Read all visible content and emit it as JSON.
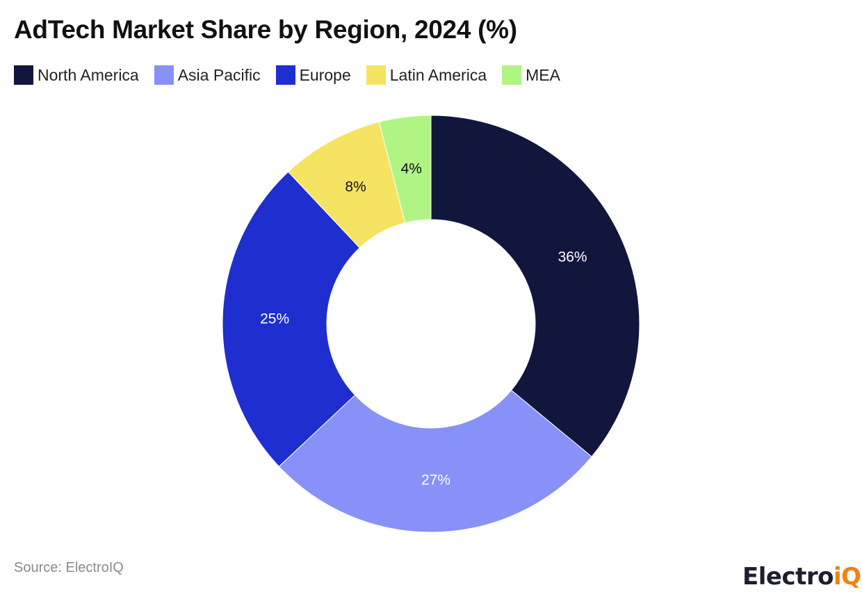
{
  "title": "AdTech Market Share by Region, 2024 (%)",
  "legend": [
    {
      "label": "North America",
      "color": "#11163d"
    },
    {
      "label": "Asia Pacific",
      "color": "#8791f7"
    },
    {
      "label": "Europe",
      "color": "#1e2ecf"
    },
    {
      "label": "Latin America",
      "color": "#f5e462"
    },
    {
      "label": "MEA",
      "color": "#b0f584"
    }
  ],
  "source": "Source: ElectroIQ",
  "logo": {
    "main": "Electro",
    "accent": "iQ"
  },
  "chart_data": {
    "type": "pie",
    "variant": "donut",
    "title": "AdTech Market Share by Region, 2024 (%)",
    "categories": [
      "North America",
      "Asia Pacific",
      "Europe",
      "Latin America",
      "MEA"
    ],
    "values": [
      36,
      27,
      25,
      8,
      4
    ],
    "labels": [
      "36%",
      "27%",
      "25%",
      "8%",
      "4%"
    ],
    "colors": [
      "#11163d",
      "#8791f7",
      "#1e2ecf",
      "#f5e462",
      "#b0f584"
    ],
    "label_colors": [
      "#ffffff",
      "#ffffff",
      "#ffffff",
      "#111111",
      "#111111"
    ],
    "legend_position": "top",
    "start_angle": "12 o'clock",
    "direction": "clockwise"
  }
}
